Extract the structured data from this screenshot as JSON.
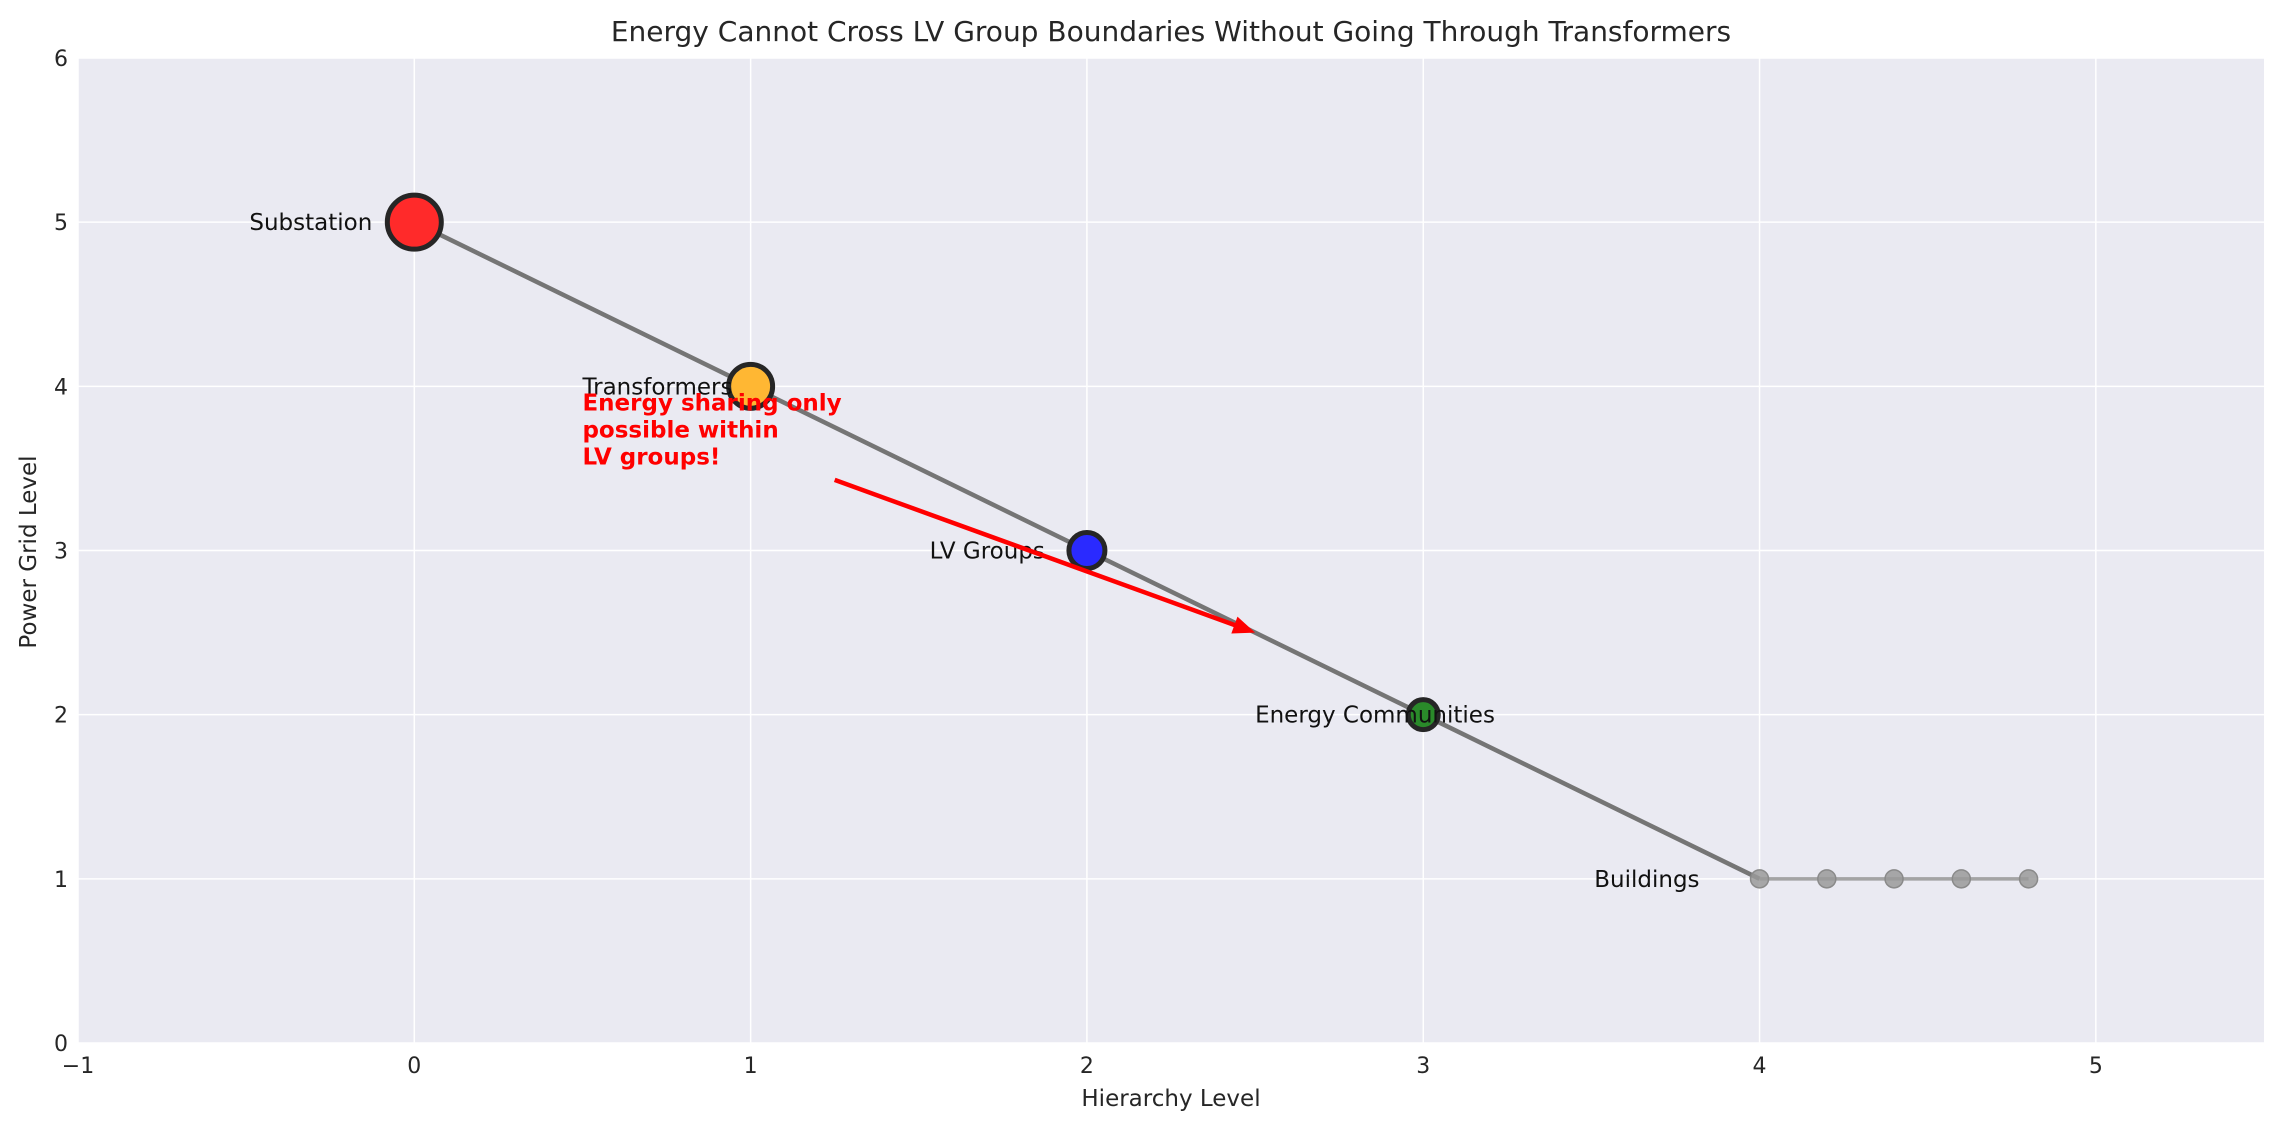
{
  "chart_data": {
    "type": "line",
    "title": "Energy Cannot Cross LV Group Boundaries Without Going Through Transformers",
    "xlabel": "Hierarchy Level",
    "ylabel": "Power Grid Level",
    "xlim": [
      -1,
      5.5
    ],
    "ylim": [
      0,
      6
    ],
    "x_ticks": [
      -1,
      0,
      1,
      2,
      3,
      4,
      5
    ],
    "y_ticks": [
      0,
      1,
      2,
      3,
      4,
      5,
      6
    ],
    "grid": true,
    "hierarchy_line": {
      "x": [
        0,
        1,
        2,
        3,
        4
      ],
      "y": [
        5,
        4,
        3,
        2,
        1
      ],
      "color": "#757575"
    },
    "nodes": [
      {
        "label": "Substation",
        "x": 0,
        "y": 5,
        "color": "#ff2a2a",
        "size": "large"
      },
      {
        "label": "Transformers",
        "x": 1,
        "y": 4,
        "color": "#ffb733",
        "size": "medium"
      },
      {
        "label": "LV Groups",
        "x": 2,
        "y": 3,
        "color": "#2a2aff",
        "size": "small"
      },
      {
        "label": "Energy Communities",
        "x": 3,
        "y": 2,
        "color": "#2a8a2a",
        "size": "smallest"
      }
    ],
    "buildings": {
      "label": "Buildings",
      "x": [
        4,
        4.2,
        4.4,
        4.6,
        4.8
      ],
      "y": 1,
      "color": "#9a9a9a"
    },
    "annotation": {
      "lines": [
        "Energy sharing only",
        "possible within",
        "LV groups!"
      ],
      "color": "#ff0000",
      "text_x": 0.5,
      "text_y": 3.5,
      "arrow_from": [
        1.25,
        3.43
      ],
      "arrow_to": [
        2.5,
        2.5
      ]
    }
  }
}
